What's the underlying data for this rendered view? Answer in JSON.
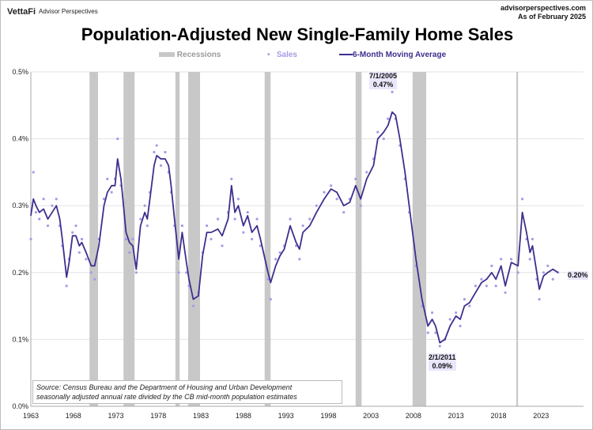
{
  "header": {
    "brand": "VettaFi",
    "brand_sub": "Advisor Perspectives",
    "site": "advisorperspectives.com",
    "as_of": "As of February 2025"
  },
  "colors": {
    "ma": "#3d2f8f",
    "sales": "#a99ae6",
    "recession": "#c8c8c8",
    "grid": "#e3e3e3"
  },
  "chart_data": {
    "type": "line",
    "title": "Population-Adjusted New Single-Family Home Sales",
    "legend": [
      "Recessions",
      "Sales",
      "6-Month Moving Average"
    ],
    "legend_placement": "top",
    "ylim": [
      0,
      0.5
    ],
    "y_ticks": [
      "0.0%",
      "0.1%",
      "0.2%",
      "0.3%",
      "0.4%",
      "0.5%"
    ],
    "x_ticks": [
      "1963",
      "1968",
      "1973",
      "1978",
      "1983",
      "1988",
      "1993",
      "1998",
      "2003",
      "2008",
      "2013",
      "2018",
      "2023"
    ],
    "xlim": [
      1963,
      2028
    ],
    "grid": true,
    "unit": "%",
    "recessions": [
      [
        1969.9,
        1970.9
      ],
      [
        1973.9,
        1975.2
      ],
      [
        1980.0,
        1980.5
      ],
      [
        1981.5,
        1982.9
      ],
      [
        1990.5,
        1991.2
      ],
      [
        2001.2,
        2001.9
      ],
      [
        2007.9,
        2009.5
      ],
      [
        2020.1,
        2020.3
      ]
    ],
    "x": [
      1963.0,
      1963.3,
      1963.6,
      1964.0,
      1964.5,
      1965.0,
      1965.5,
      1966.0,
      1966.4,
      1966.7,
      1967.2,
      1967.5,
      1967.9,
      1968.3,
      1968.7,
      1969.0,
      1969.5,
      1970.1,
      1970.5,
      1971.0,
      1971.6,
      1972.0,
      1972.5,
      1972.9,
      1973.2,
      1973.6,
      1974.2,
      1974.6,
      1975.0,
      1975.4,
      1975.9,
      1976.4,
      1976.7,
      1977.0,
      1977.5,
      1977.8,
      1978.3,
      1978.8,
      1979.2,
      1979.5,
      1979.9,
      1980.4,
      1980.8,
      1981.3,
      1981.6,
      1982.1,
      1982.7,
      1983.2,
      1983.7,
      1984.2,
      1985.0,
      1985.5,
      1986.2,
      1986.6,
      1987.0,
      1987.4,
      1988.0,
      1988.5,
      1989.0,
      1989.6,
      1990.0,
      1990.9,
      1991.2,
      1991.8,
      1992.3,
      1992.8,
      1993.5,
      1994.2,
      1994.6,
      1995.0,
      1995.8,
      1996.6,
      1997.5,
      1998.3,
      1999.0,
      1999.8,
      2000.5,
      2001.2,
      2001.8,
      2002.5,
      2003.3,
      2003.8,
      2004.5,
      2005.0,
      2005.5,
      2005.9,
      2006.4,
      2007.0,
      2007.5,
      2008.3,
      2009.0,
      2009.7,
      2010.2,
      2010.6,
      2011.1,
      2011.7,
      2012.3,
      2013.0,
      2013.5,
      2014.0,
      2014.6,
      2015.3,
      2016.0,
      2016.6,
      2017.2,
      2017.7,
      2018.3,
      2018.8,
      2019.5,
      2020.3,
      2020.8,
      2021.3,
      2021.7,
      2022.0,
      2022.5,
      2022.8,
      2023.3,
      2023.8,
      2024.4,
      2025.0
    ],
    "series": [
      {
        "name": "6-Month Moving Average",
        "values": [
          0.285,
          0.31,
          0.3,
          0.29,
          0.295,
          0.28,
          0.29,
          0.3,
          0.28,
          0.25,
          0.193,
          0.215,
          0.255,
          0.255,
          0.24,
          0.245,
          0.23,
          0.21,
          0.21,
          0.24,
          0.3,
          0.32,
          0.33,
          0.33,
          0.37,
          0.34,
          0.26,
          0.245,
          0.24,
          0.205,
          0.27,
          0.29,
          0.28,
          0.31,
          0.36,
          0.375,
          0.37,
          0.37,
          0.36,
          0.33,
          0.28,
          0.22,
          0.26,
          0.215,
          0.19,
          0.16,
          0.165,
          0.225,
          0.26,
          0.26,
          0.265,
          0.255,
          0.28,
          0.33,
          0.29,
          0.3,
          0.27,
          0.285,
          0.26,
          0.27,
          0.25,
          0.2,
          0.185,
          0.21,
          0.225,
          0.235,
          0.27,
          0.245,
          0.235,
          0.26,
          0.27,
          0.29,
          0.31,
          0.325,
          0.32,
          0.3,
          0.305,
          0.33,
          0.31,
          0.34,
          0.36,
          0.4,
          0.41,
          0.42,
          0.44,
          0.435,
          0.4,
          0.35,
          0.3,
          0.22,
          0.16,
          0.12,
          0.13,
          0.12,
          0.095,
          0.1,
          0.12,
          0.135,
          0.13,
          0.15,
          0.155,
          0.17,
          0.185,
          0.19,
          0.2,
          0.19,
          0.21,
          0.18,
          0.215,
          0.21,
          0.29,
          0.26,
          0.23,
          0.24,
          0.2,
          0.175,
          0.195,
          0.2,
          0.205,
          0.2
        ]
      },
      {
        "name": "Sales",
        "values": [
          0.25,
          0.35,
          0.29,
          0.28,
          0.31,
          0.27,
          0.3,
          0.31,
          0.27,
          0.24,
          0.18,
          0.22,
          0.26,
          0.27,
          0.23,
          0.25,
          0.22,
          0.2,
          0.19,
          0.25,
          0.31,
          0.34,
          0.32,
          0.34,
          0.4,
          0.33,
          0.25,
          0.23,
          0.25,
          0.2,
          0.28,
          0.3,
          0.27,
          0.32,
          0.38,
          0.39,
          0.36,
          0.38,
          0.35,
          0.32,
          0.27,
          0.2,
          0.27,
          0.2,
          0.18,
          0.15,
          0.17,
          0.23,
          0.27,
          0.25,
          0.28,
          0.24,
          0.29,
          0.34,
          0.28,
          0.31,
          0.26,
          0.29,
          0.25,
          0.28,
          0.24,
          0.19,
          0.16,
          0.22,
          0.23,
          0.24,
          0.28,
          0.24,
          0.22,
          0.27,
          0.28,
          0.3,
          0.32,
          0.33,
          0.31,
          0.29,
          0.31,
          0.34,
          0.3,
          0.35,
          0.37,
          0.41,
          0.4,
          0.43,
          0.47,
          0.43,
          0.39,
          0.34,
          0.29,
          0.21,
          0.15,
          0.11,
          0.14,
          0.11,
          0.09,
          0.1,
          0.13,
          0.14,
          0.12,
          0.16,
          0.15,
          0.18,
          0.19,
          0.18,
          0.21,
          0.18,
          0.22,
          0.17,
          0.22,
          0.2,
          0.31,
          0.25,
          0.22,
          0.25,
          0.19,
          0.16,
          0.2,
          0.21,
          0.19,
          0.2
        ]
      }
    ],
    "annotations": [
      {
        "date": "7/1/2005",
        "value": "0.47%"
      },
      {
        "date": "2/1/2011",
        "value": "0.09%"
      },
      {
        "date": "",
        "value": "0.20%"
      }
    ],
    "source_line1": "Source: Census Bureau and the Department of Housing and Urban Development",
    "source_line2": "seasonally adjusted annual rate divided by the CB mid-month population estimates"
  }
}
